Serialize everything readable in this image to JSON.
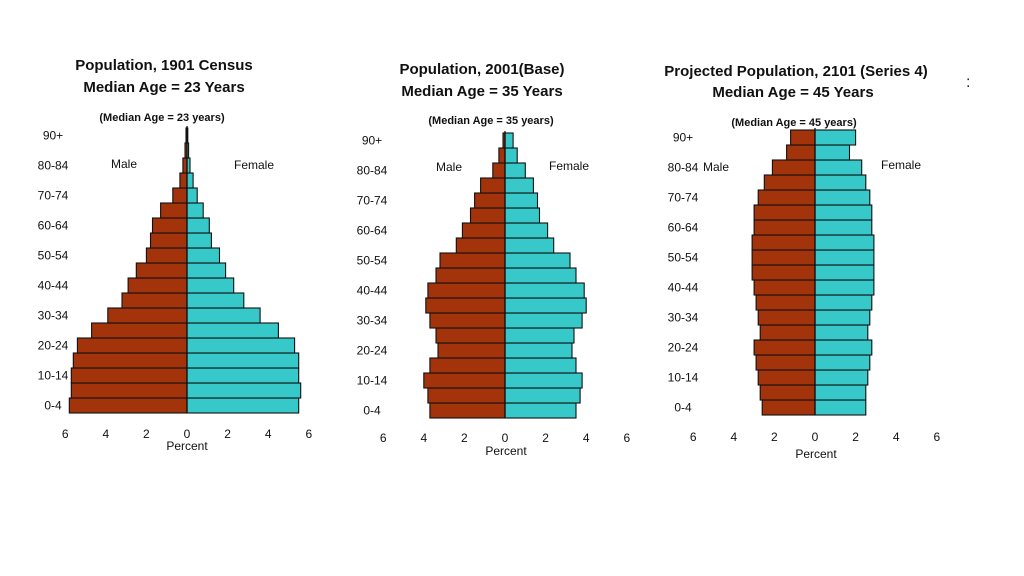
{
  "colors": {
    "male": "#a2330b",
    "female": "#37c9c9",
    "outline": "#111111",
    "text": "#111111"
  },
  "stray_mark": ":",
  "chart_data": [
    {
      "type": "population-pyramid",
      "title": "Population, 1901 Census",
      "subtitle": "Median Age = 23 Years",
      "note": "(Median Age = 23 years)",
      "male_label": "Male",
      "female_label": "Female",
      "xlabel": "Percent",
      "xlim": [
        -6,
        6
      ],
      "xticks": [
        "6",
        "4",
        "2",
        "0",
        "2",
        "4",
        "6"
      ],
      "age_groups": [
        "0-4",
        "5-9",
        "10-14",
        "15-19",
        "20-24",
        "25-29",
        "30-34",
        "35-39",
        "40-44",
        "45-49",
        "50-54",
        "55-59",
        "60-64",
        "65-69",
        "70-74",
        "75-79",
        "80-84",
        "85-89",
        "90+"
      ],
      "age_tick_labels": [
        "0-4",
        "",
        "10-14",
        "",
        "20-24",
        "",
        "30-34",
        "",
        "40-44",
        "",
        "50-54",
        "",
        "60-64",
        "",
        "70-74",
        "",
        "80-84",
        "",
        "90+"
      ],
      "male": [
        5.8,
        5.7,
        5.7,
        5.6,
        5.4,
        4.7,
        3.9,
        3.2,
        2.9,
        2.5,
        2.0,
        1.8,
        1.7,
        1.3,
        0.7,
        0.35,
        0.2,
        0.1,
        0.05
      ],
      "female": [
        5.5,
        5.6,
        5.5,
        5.5,
        5.3,
        4.5,
        3.6,
        2.8,
        2.3,
        1.9,
        1.6,
        1.2,
        1.1,
        0.8,
        0.5,
        0.3,
        0.15,
        0.08,
        0.04
      ]
    },
    {
      "type": "population-pyramid",
      "title": "Population, 2001(Base)",
      "subtitle": "Median Age = 35 Years",
      "note": "(Median Age = 35 years)",
      "male_label": "Male",
      "female_label": "Female",
      "xlabel": "Percent",
      "xlim": [
        -6,
        6
      ],
      "xticks": [
        "6",
        "4",
        "2",
        "0",
        "2",
        "4",
        "6"
      ],
      "age_groups": [
        "0-4",
        "5-9",
        "10-14",
        "15-19",
        "20-24",
        "25-29",
        "30-34",
        "35-39",
        "40-44",
        "45-49",
        "50-54",
        "55-59",
        "60-64",
        "65-69",
        "70-74",
        "75-79",
        "80-84",
        "85-89",
        "90+"
      ],
      "age_tick_labels": [
        "0-4",
        "",
        "10-14",
        "",
        "20-24",
        "",
        "30-34",
        "",
        "40-44",
        "",
        "50-54",
        "",
        "60-64",
        "",
        "70-74",
        "",
        "80-84",
        "",
        "90+"
      ],
      "male": [
        3.7,
        3.8,
        4.0,
        3.7,
        3.3,
        3.4,
        3.7,
        3.9,
        3.8,
        3.4,
        3.2,
        2.4,
        2.1,
        1.7,
        1.5,
        1.2,
        0.6,
        0.3,
        0.1
      ],
      "female": [
        3.5,
        3.7,
        3.8,
        3.5,
        3.3,
        3.4,
        3.8,
        4.0,
        3.9,
        3.5,
        3.2,
        2.4,
        2.1,
        1.7,
        1.6,
        1.4,
        1.0,
        0.6,
        0.4
      ]
    },
    {
      "type": "population-pyramid",
      "title": "Projected Population, 2101 (Series 4)",
      "subtitle": "Median Age = 45 Years",
      "note": "(Median Age = 45 years)",
      "male_label": "Male",
      "female_label": "Female",
      "xlabel": "Percent",
      "xlim": [
        -6,
        6
      ],
      "xticks": [
        "6",
        "4",
        "2",
        "0",
        "2",
        "4",
        "6"
      ],
      "age_groups": [
        "0-4",
        "5-9",
        "10-14",
        "15-19",
        "20-24",
        "25-29",
        "30-34",
        "35-39",
        "40-44",
        "45-49",
        "50-54",
        "55-59",
        "60-64",
        "65-69",
        "70-74",
        "75-79",
        "80-84",
        "85-89",
        "90+"
      ],
      "age_tick_labels": [
        "0-4",
        "",
        "10-14",
        "",
        "20-24",
        "",
        "30-34",
        "",
        "40-44",
        "",
        "50-54",
        "",
        "60-64",
        "",
        "70-74",
        "",
        "80-84",
        "",
        "90+"
      ],
      "male": [
        2.6,
        2.7,
        2.8,
        2.9,
        3.0,
        2.7,
        2.8,
        2.9,
        3.0,
        3.1,
        3.1,
        3.1,
        3.0,
        3.0,
        2.8,
        2.5,
        2.1,
        1.4,
        1.2
      ],
      "female": [
        2.5,
        2.5,
        2.6,
        2.7,
        2.8,
        2.6,
        2.7,
        2.8,
        2.9,
        2.9,
        2.9,
        2.9,
        2.8,
        2.8,
        2.7,
        2.5,
        2.3,
        1.7,
        2.0
      ]
    }
  ]
}
